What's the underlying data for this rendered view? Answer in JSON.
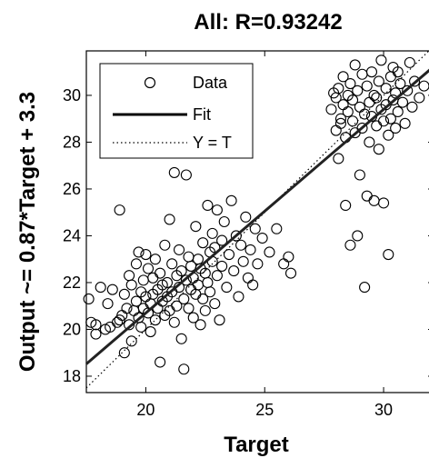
{
  "chart_data": {
    "type": "scatter",
    "title": "All: R=0.93242",
    "xlabel": "Target",
    "ylabel": "Output ~= 0.87*Target + 3.3",
    "xlim": [
      17.5,
      32.1
    ],
    "ylim": [
      17.3,
      31.9
    ],
    "xticks": [
      20,
      25,
      30
    ],
    "yticks": [
      18,
      20,
      22,
      24,
      26,
      28,
      30
    ],
    "grid": false,
    "legend_position": "top-left",
    "legend": [
      {
        "label": "Data",
        "marker": "circle"
      },
      {
        "label": "Fit",
        "line": "solid"
      },
      {
        "label": "Y = T",
        "line": "dotted"
      }
    ],
    "fit": {
      "slope": 0.87,
      "intercept": 3.3
    },
    "series": [
      {
        "name": "Data",
        "points": [
          [
            17.6,
            21.3
          ],
          [
            17.7,
            20.3
          ],
          [
            17.9,
            20.2
          ],
          [
            17.9,
            19.8
          ],
          [
            18.1,
            21.8
          ],
          [
            18.3,
            20.0
          ],
          [
            18.4,
            21.1
          ],
          [
            18.5,
            20.1
          ],
          [
            18.6,
            21.7
          ],
          [
            18.8,
            20.3
          ],
          [
            18.9,
            25.1
          ],
          [
            18.9,
            20.4
          ],
          [
            19.0,
            20.6
          ],
          [
            19.1,
            19.0
          ],
          [
            19.1,
            21.5
          ],
          [
            19.2,
            20.9
          ],
          [
            19.3,
            20.2
          ],
          [
            19.3,
            22.3
          ],
          [
            19.4,
            19.5
          ],
          [
            19.4,
            21.9
          ],
          [
            19.5,
            20.8
          ],
          [
            19.6,
            21.2
          ],
          [
            19.6,
            22.8
          ],
          [
            19.7,
            20.5
          ],
          [
            19.7,
            23.3
          ],
          [
            19.8,
            21.6
          ],
          [
            19.8,
            20.1
          ],
          [
            19.9,
            22.1
          ],
          [
            19.9,
            20.9
          ],
          [
            20.0,
            21.4
          ],
          [
            20.0,
            23.2
          ],
          [
            20.1,
            20.7
          ],
          [
            20.1,
            22.6
          ],
          [
            20.2,
            21.1
          ],
          [
            20.2,
            19.9
          ],
          [
            20.3,
            22.2
          ],
          [
            20.3,
            21.5
          ],
          [
            20.4,
            20.4
          ],
          [
            20.4,
            23.0
          ],
          [
            20.5,
            21.7
          ],
          [
            20.5,
            20.9
          ],
          [
            20.6,
            22.4
          ],
          [
            20.6,
            18.6
          ],
          [
            20.7,
            21.2
          ],
          [
            20.7,
            21.9
          ],
          [
            20.8,
            23.6
          ],
          [
            20.8,
            20.6
          ],
          [
            20.9,
            22.0
          ],
          [
            20.9,
            21.4
          ],
          [
            21.0,
            24.7
          ],
          [
            21.0,
            20.8
          ],
          [
            21.1,
            22.8
          ],
          [
            21.1,
            21.6
          ],
          [
            21.2,
            26.7
          ],
          [
            21.2,
            20.3
          ],
          [
            21.3,
            22.3
          ],
          [
            21.3,
            21.0
          ],
          [
            21.4,
            23.4
          ],
          [
            21.4,
            21.8
          ],
          [
            21.5,
            19.6
          ],
          [
            21.5,
            22.5
          ],
          [
            21.6,
            21.3
          ],
          [
            21.6,
            18.3
          ],
          [
            21.7,
            26.6
          ],
          [
            21.7,
            22.1
          ],
          [
            21.8,
            20.9
          ],
          [
            21.8,
            23.1
          ],
          [
            21.9,
            21.7
          ],
          [
            21.9,
            22.7
          ],
          [
            22.0,
            20.5
          ],
          [
            22.0,
            22.2
          ],
          [
            22.1,
            21.5
          ],
          [
            22.1,
            24.4
          ],
          [
            22.2,
            23.0
          ],
          [
            22.2,
            21.9
          ],
          [
            22.3,
            20.2
          ],
          [
            22.3,
            22.6
          ],
          [
            22.4,
            21.3
          ],
          [
            22.4,
            23.7
          ],
          [
            22.5,
            22.4
          ],
          [
            22.5,
            20.8
          ],
          [
            22.6,
            25.3
          ],
          [
            22.6,
            22.0
          ],
          [
            22.7,
            23.3
          ],
          [
            22.7,
            21.6
          ],
          [
            22.8,
            24.1
          ],
          [
            22.8,
            22.9
          ],
          [
            22.9,
            21.1
          ],
          [
            22.9,
            23.5
          ],
          [
            23.0,
            25.1
          ],
          [
            23.0,
            22.3
          ],
          [
            23.1,
            20.4
          ],
          [
            23.2,
            23.8
          ],
          [
            23.2,
            22.7
          ],
          [
            23.3,
            24.6
          ],
          [
            23.4,
            21.8
          ],
          [
            23.5,
            23.2
          ],
          [
            23.6,
            25.5
          ],
          [
            23.7,
            22.5
          ],
          [
            23.8,
            24.0
          ],
          [
            23.9,
            21.4
          ],
          [
            24.0,
            23.6
          ],
          [
            24.1,
            22.9
          ],
          [
            24.2,
            24.8
          ],
          [
            24.3,
            22.2
          ],
          [
            24.4,
            23.4
          ],
          [
            24.5,
            21.9
          ],
          [
            24.6,
            24.3
          ],
          [
            24.7,
            22.8
          ],
          [
            24.9,
            23.9
          ],
          [
            25.2,
            23.3
          ],
          [
            25.5,
            24.3
          ],
          [
            25.8,
            22.8
          ],
          [
            26.0,
            23.1
          ],
          [
            26.1,
            22.4
          ],
          [
            27.8,
            29.4
          ],
          [
            27.9,
            30.1
          ],
          [
            28.0,
            28.5
          ],
          [
            28.0,
            29.9
          ],
          [
            28.1,
            27.3
          ],
          [
            28.1,
            30.3
          ],
          [
            28.2,
            29.0
          ],
          [
            28.2,
            28.8
          ],
          [
            28.3,
            30.8
          ],
          [
            28.3,
            29.6
          ],
          [
            28.4,
            28.2
          ],
          [
            28.4,
            25.3
          ],
          [
            28.5,
            30.0
          ],
          [
            28.5,
            29.3
          ],
          [
            28.6,
            23.6
          ],
          [
            28.6,
            30.5
          ],
          [
            28.7,
            28.9
          ],
          [
            28.7,
            29.8
          ],
          [
            28.8,
            31.3
          ],
          [
            28.8,
            28.4
          ],
          [
            28.9,
            30.2
          ],
          [
            28.9,
            24.0
          ],
          [
            29.0,
            29.5
          ],
          [
            29.0,
            26.6
          ],
          [
            29.1,
            30.9
          ],
          [
            29.1,
            28.6
          ],
          [
            29.2,
            29.2
          ],
          [
            29.2,
            21.8
          ],
          [
            29.3,
            30.4
          ],
          [
            29.3,
            25.7
          ],
          [
            29.4,
            29.7
          ],
          [
            29.4,
            28.0
          ],
          [
            29.5,
            31.0
          ],
          [
            29.5,
            29.1
          ],
          [
            29.6,
            30.0
          ],
          [
            29.6,
            25.5
          ],
          [
            29.7,
            28.7
          ],
          [
            29.7,
            29.9
          ],
          [
            29.8,
            30.6
          ],
          [
            29.8,
            27.7
          ],
          [
            29.9,
            29.4
          ],
          [
            29.9,
            31.5
          ],
          [
            30.0,
            25.4
          ],
          [
            30.0,
            28.9
          ],
          [
            30.1,
            30.3
          ],
          [
            30.1,
            29.6
          ],
          [
            30.2,
            23.2
          ],
          [
            30.2,
            28.3
          ],
          [
            30.3,
            30.8
          ],
          [
            30.3,
            29.0
          ],
          [
            30.4,
            31.2
          ],
          [
            30.4,
            29.8
          ],
          [
            30.5,
            28.6
          ],
          [
            30.5,
            30.1
          ],
          [
            30.6,
            31.0
          ],
          [
            30.6,
            29.3
          ],
          [
            30.7,
            30.5
          ],
          [
            30.8,
            29.7
          ],
          [
            30.9,
            28.8
          ],
          [
            31.0,
            30.2
          ],
          [
            31.1,
            31.4
          ],
          [
            31.2,
            29.5
          ],
          [
            31.3,
            30.6
          ],
          [
            31.5,
            29.9
          ],
          [
            31.7,
            30.4
          ]
        ]
      }
    ]
  }
}
